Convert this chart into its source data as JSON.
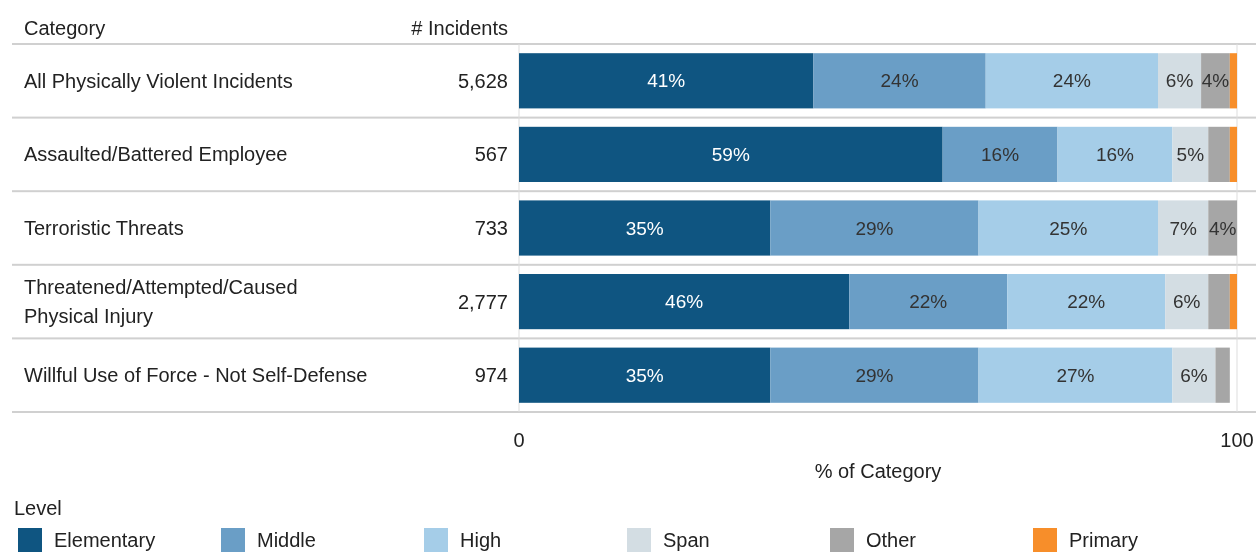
{
  "chart_data": {
    "type": "bar",
    "orientation": "horizontal",
    "stacked": true,
    "ylabel": "Category",
    "xlabel": "% of Category",
    "legend_title": "Level",
    "legend": "bottom left",
    "categories": [
      "All Physically Violent Incidents",
      "Assaulted/Battered Employee",
      "Terroristic Threats",
      "Threatened/Attempted/Caused Physical Injury",
      "Willful Use of Force - Not Self-Defense"
    ],
    "xlim": [
      0,
      100
    ],
    "xticks": [
      0,
      100
    ],
    "series": [
      {
        "name": "Elementary",
        "color": "#0f5581",
        "values": [
          41,
          59,
          35,
          46,
          35
        ],
        "value_labels": [
          "41%",
          "59%",
          "35%",
          "46%",
          "35%"
        ]
      },
      {
        "name": "Middle",
        "color": "#6a9ec6",
        "values": [
          24,
          16,
          29,
          22,
          29
        ],
        "value_labels": [
          "24%",
          "16%",
          "29%",
          "22%",
          "29%"
        ]
      },
      {
        "name": "High",
        "color": "#a5cde8",
        "values": [
          24,
          16,
          25,
          22,
          27
        ],
        "value_labels": [
          "24%",
          "16%",
          "25%",
          "22%",
          "27%"
        ]
      },
      {
        "name": "Span",
        "color": "#d3dde3",
        "values": [
          6,
          5,
          7,
          6,
          6
        ],
        "value_labels": [
          "6%",
          "5%",
          "7%",
          "6%",
          "6%"
        ]
      },
      {
        "name": "Other",
        "color": "#a6a6a6",
        "values": [
          4,
          3,
          4,
          3,
          2
        ],
        "value_labels": [
          "4%",
          null,
          "4%",
          null,
          null
        ]
      },
      {
        "name": "Primary",
        "color": "#f78e2a",
        "values": [
          1,
          1,
          0,
          1,
          0
        ],
        "value_labels": [
          null,
          null,
          null,
          null,
          null
        ]
      }
    ],
    "annotations": [
      "# Incidents",
      "5,628",
      "567",
      "733",
      "2,777",
      "974"
    ]
  }
}
